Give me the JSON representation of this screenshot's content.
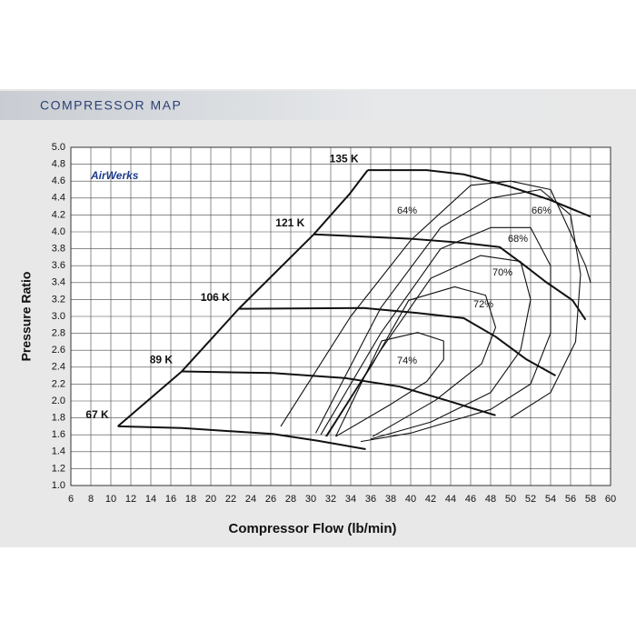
{
  "chart_data": {
    "type": "line",
    "title": "COMPRESSOR MAP",
    "logo": "AirWerks",
    "x_label": "Compressor Flow (lb/min)",
    "y_label": "Pressure Ratio",
    "xlim": [
      6,
      60
    ],
    "ylim": [
      1,
      5
    ],
    "xticks": [
      6,
      8,
      10,
      12,
      14,
      16,
      18,
      20,
      22,
      24,
      26,
      28,
      30,
      32,
      34,
      36,
      38,
      40,
      42,
      44,
      46,
      48,
      50,
      52,
      54,
      56,
      58,
      60
    ],
    "yticks": [
      {
        "value": 1,
        "label": "1.0"
      },
      1.2,
      1.4,
      1.6,
      1.8,
      {
        "value": 2,
        "label": "2.0"
      },
      2.2,
      2.4,
      2.6,
      2.8,
      {
        "value": 3,
        "label": "3.0"
      },
      3.2,
      3.4,
      3.6,
      3.8,
      {
        "value": 4,
        "label": "4.0"
      },
      4.2,
      4.4,
      4.6,
      4.8,
      {
        "value": 5,
        "label": "5.0"
      }
    ],
    "grid": true,
    "color": "#111111",
    "surge_line": {
      "x": [
        10.7,
        17.1,
        22.8,
        30.3,
        33.9,
        35.7
      ],
      "y": [
        1.7,
        2.35,
        3.09,
        3.97,
        4.45,
        4.73
      ]
    },
    "speed_lines": [
      {
        "name": "67 K",
        "x": [
          10.7,
          17.1,
          26.2,
          30.7,
          35.5
        ],
        "y": [
          1.7,
          1.68,
          1.61,
          1.53,
          1.43
        ]
      },
      {
        "name": "89 K",
        "x": [
          17.1,
          26.2,
          33.5,
          38.9,
          43.5,
          48.5
        ],
        "y": [
          2.35,
          2.33,
          2.27,
          2.17,
          2.01,
          1.83
        ]
      },
      {
        "name": "106 K",
        "x": [
          22.8,
          35.3,
          40.7,
          45.3,
          48.5,
          51.6,
          54.5
        ],
        "y": [
          3.09,
          3.1,
          3.04,
          2.98,
          2.76,
          2.49,
          2.3
        ]
      },
      {
        "name": "121 K",
        "x": [
          30.3,
          39.8,
          45.3,
          48.9,
          51.2,
          53.5,
          56.2,
          57.5
        ],
        "y": [
          3.97,
          3.92,
          3.87,
          3.82,
          3.62,
          3.41,
          3.19,
          2.96
        ]
      },
      {
        "name": "135 K",
        "x": [
          35.7,
          41.6,
          45.3,
          49.8,
          53.9,
          58.0
        ],
        "y": [
          4.73,
          4.73,
          4.68,
          4.54,
          4.38,
          4.18
        ]
      }
    ],
    "efficiency_islands": [
      {
        "name": "74%",
        "x": [
          32.5,
          37.1,
          40.7,
          43.3,
          43.3,
          41.6,
          38.0,
          32.5
        ],
        "y": [
          1.58,
          2.71,
          2.81,
          2.71,
          2.49,
          2.23,
          1.96,
          1.58
        ]
      },
      {
        "name": "72%",
        "x": [
          31.6,
          36.2,
          39.8,
          44.4,
          47.5,
          48.5,
          47.1,
          42.5,
          36.2
        ],
        "y": [
          1.58,
          2.44,
          3.19,
          3.35,
          3.25,
          2.87,
          2.44,
          2.01,
          1.58
        ]
      },
      {
        "name": "70%",
        "x": [
          31.5,
          37,
          42,
          47,
          51,
          52,
          51,
          48,
          42,
          36
        ],
        "y": [
          1.58,
          2.6,
          3.45,
          3.72,
          3.65,
          3.2,
          2.6,
          2.1,
          1.75,
          1.55
        ]
      },
      {
        "name": "68%",
        "x": [
          31,
          37,
          43,
          48,
          52,
          54,
          54,
          52,
          48,
          40,
          35
        ],
        "y": [
          1.6,
          2.8,
          3.8,
          4.05,
          4.05,
          3.6,
          2.8,
          2.2,
          1.9,
          1.62,
          1.52
        ]
      },
      {
        "name": "66%",
        "x": [
          30.5,
          37,
          43,
          48,
          53,
          56,
          57,
          56.5,
          54,
          50
        ],
        "y": [
          1.62,
          3.1,
          4.05,
          4.4,
          4.5,
          4.2,
          3.5,
          2.7,
          2.1,
          1.8
        ]
      },
      {
        "name": "64%",
        "x": [
          27,
          34,
          40,
          46,
          50,
          54,
          57.5,
          58
        ],
        "y": [
          1.7,
          3.0,
          3.9,
          4.55,
          4.6,
          4.5,
          3.6,
          3.4
        ]
      }
    ]
  }
}
